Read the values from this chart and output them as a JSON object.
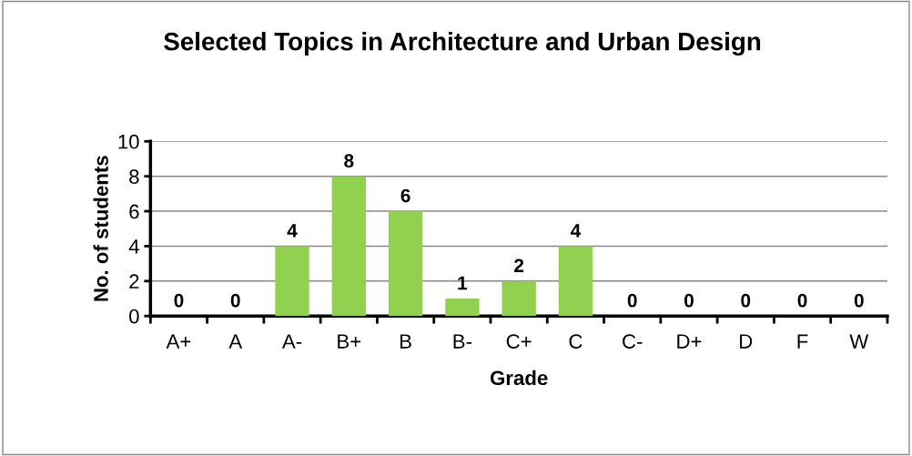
{
  "chart_data": {
    "type": "bar",
    "title": "Selected Topics in Architecture and Urban Design",
    "xlabel": "Grade",
    "ylabel": "No. of students",
    "categories": [
      "A+",
      "A",
      "A-",
      "B+",
      "B",
      "B-",
      "C+",
      "C",
      "C-",
      "D+",
      "D",
      "F",
      "W"
    ],
    "values": [
      0,
      0,
      4,
      8,
      6,
      1,
      2,
      4,
      0,
      0,
      0,
      0,
      0
    ],
    "color": "#92d050",
    "ylim": [
      0,
      10
    ],
    "yticks": [
      0,
      2,
      4,
      6,
      8,
      10
    ],
    "grid": "y",
    "data_labels": true
  }
}
